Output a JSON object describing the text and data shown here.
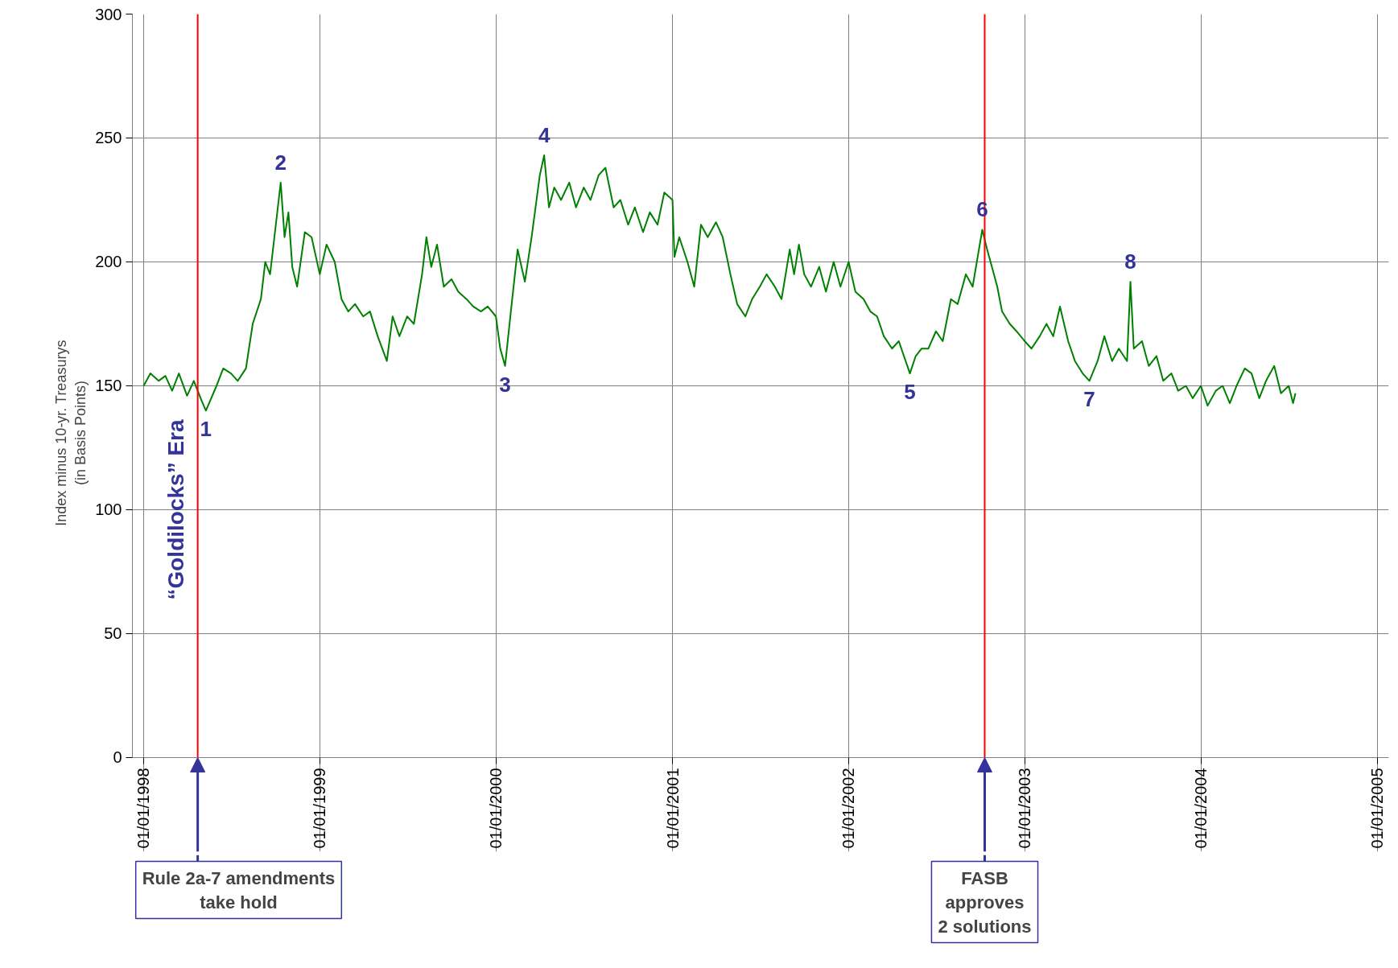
{
  "chart_data": {
    "type": "line",
    "ylabel": "Index minus 10-yr. Treasurys\n(in Basis Points)",
    "x": [
      "1998-01-01",
      "1998-01-15",
      "1998-02-01",
      "1998-02-15",
      "1998-03-01",
      "1998-03-15",
      "1998-04-01",
      "1998-04-15",
      "1998-05-01",
      "1998-05-10",
      "1998-06-01",
      "1998-06-15",
      "1998-07-01",
      "1998-07-15",
      "1998-08-01",
      "1998-08-15",
      "1998-09-01",
      "1998-09-10",
      "1998-09-20",
      "1998-10-12",
      "1998-10-20",
      "1998-10-28",
      "1998-11-05",
      "1998-11-15",
      "1998-12-01",
      "1998-12-15",
      "1999-01-01",
      "1999-01-15",
      "1999-02-01",
      "1999-02-15",
      "1999-03-01",
      "1999-03-15",
      "1999-04-01",
      "1999-04-15",
      "1999-05-01",
      "1999-05-20",
      "1999-06-01",
      "1999-06-15",
      "1999-07-01",
      "1999-07-15",
      "1999-08-01",
      "1999-08-10",
      "1999-08-20",
      "1999-09-01",
      "1999-09-15",
      "1999-10-01",
      "1999-10-15",
      "1999-11-01",
      "1999-11-15",
      "1999-12-01",
      "1999-12-15",
      "2000-01-01",
      "2000-01-10",
      "2000-01-20",
      "2000-02-01",
      "2000-02-15",
      "2000-03-01",
      "2000-03-15",
      "2000-04-01",
      "2000-04-10",
      "2000-04-20",
      "2000-05-01",
      "2000-05-15",
      "2000-06-01",
      "2000-06-15",
      "2000-07-01",
      "2000-07-15",
      "2000-08-01",
      "2000-08-15",
      "2000-09-01",
      "2000-09-15",
      "2000-10-01",
      "2000-10-15",
      "2000-11-01",
      "2000-11-15",
      "2000-12-01",
      "2000-12-15",
      "2001-01-01",
      "2001-01-05",
      "2001-01-15",
      "2001-02-01",
      "2001-02-15",
      "2001-03-01",
      "2001-03-15",
      "2001-04-01",
      "2001-04-15",
      "2001-05-01",
      "2001-05-15",
      "2001-06-01",
      "2001-06-15",
      "2001-07-01",
      "2001-07-15",
      "2001-08-01",
      "2001-08-15",
      "2001-09-01",
      "2001-09-10",
      "2001-09-20",
      "2001-10-01",
      "2001-10-15",
      "2001-11-01",
      "2001-11-15",
      "2001-12-01",
      "2001-12-15",
      "2002-01-01",
      "2002-01-15",
      "2002-02-01",
      "2002-02-15",
      "2002-03-01",
      "2002-03-15",
      "2002-04-01",
      "2002-04-15",
      "2002-05-08",
      "2002-05-20",
      "2002-06-01",
      "2002-06-15",
      "2002-07-01",
      "2002-07-15",
      "2002-08-01",
      "2002-08-15",
      "2002-09-01",
      "2002-09-15",
      "2002-10-05",
      "2002-10-15",
      "2002-10-25",
      "2002-11-05",
      "2002-11-15",
      "2002-12-01",
      "2002-12-15",
      "2003-01-01",
      "2003-01-15",
      "2003-02-01",
      "2003-02-15",
      "2003-03-01",
      "2003-03-15",
      "2003-04-01",
      "2003-04-15",
      "2003-05-01",
      "2003-05-15",
      "2003-06-01",
      "2003-06-15",
      "2003-07-01",
      "2003-07-15",
      "2003-08-01",
      "2003-08-08",
      "2003-08-15",
      "2003-09-01",
      "2003-09-15",
      "2003-10-01",
      "2003-10-15",
      "2003-11-01",
      "2003-11-15",
      "2003-12-01",
      "2003-12-15",
      "2004-01-01",
      "2004-01-15",
      "2004-02-01",
      "2004-02-15",
      "2004-03-01",
      "2004-03-15",
      "2004-04-01",
      "2004-04-15",
      "2004-05-01",
      "2004-05-15",
      "2004-06-01",
      "2004-06-15",
      "2004-07-01",
      "2004-07-10",
      "2004-07-15"
    ],
    "series": [
      {
        "color": "#008000",
        "values": [
          150,
          155,
          152,
          154,
          148,
          155,
          146,
          152,
          144,
          140,
          150,
          157,
          155,
          152,
          157,
          175,
          185,
          200,
          195,
          232,
          210,
          220,
          198,
          190,
          212,
          210,
          195,
          207,
          200,
          185,
          180,
          183,
          178,
          180,
          170,
          160,
          178,
          170,
          178,
          175,
          195,
          210,
          198,
          207,
          190,
          193,
          188,
          185,
          182,
          180,
          182,
          178,
          165,
          158,
          180,
          205,
          192,
          210,
          235,
          243,
          222,
          230,
          225,
          232,
          222,
          230,
          225,
          235,
          238,
          222,
          225,
          215,
          222,
          212,
          220,
          215,
          228,
          225,
          202,
          210,
          200,
          190,
          215,
          210,
          216,
          210,
          195,
          183,
          178,
          185,
          190,
          195,
          190,
          185,
          205,
          195,
          207,
          195,
          190,
          198,
          188,
          200,
          190,
          200,
          188,
          185,
          180,
          178,
          170,
          165,
          168,
          155,
          162,
          165,
          165,
          172,
          168,
          185,
          183,
          195,
          190,
          213,
          205,
          198,
          190,
          180,
          175,
          172,
          168,
          165,
          170,
          175,
          170,
          182,
          168,
          160,
          155,
          152,
          160,
          170,
          160,
          165,
          160,
          192,
          165,
          168,
          158,
          162,
          152,
          155,
          148,
          150,
          145,
          150,
          142,
          148,
          150,
          143,
          150,
          157,
          155,
          145,
          152,
          158,
          147,
          150,
          143,
          147
        ]
      }
    ],
    "xlim": [
      "1998-01-01",
      "2005-01-01"
    ],
    "xticks": [
      {
        "value": "1998-01-01",
        "label": "01/01/1998"
      },
      {
        "value": "1999-01-01",
        "label": "01/01/1999"
      },
      {
        "value": "2000-01-01",
        "label": "01/01/2000"
      },
      {
        "value": "2001-01-01",
        "label": "01/01/2001"
      },
      {
        "value": "2002-01-01",
        "label": "01/01/2002"
      },
      {
        "value": "2003-01-01",
        "label": "01/01/2003"
      },
      {
        "value": "2004-01-01",
        "label": "01/01/2004"
      },
      {
        "value": "2005-01-01",
        "label": "01/01/2005"
      }
    ],
    "ylim": [
      0,
      300
    ],
    "yticks": [
      0,
      50,
      100,
      150,
      200,
      250,
      300
    ],
    "grid": true,
    "marker": "none",
    "line_style": "solid",
    "ref_lines": [
      {
        "axis": "x",
        "value": "1998-04-23",
        "label": "Rule 2a-7 amendments\ntake hold",
        "color": "#ff0000"
      },
      {
        "axis": "x",
        "value": "2002-10-10",
        "label": "FASB\napproves\n2 solutions",
        "color": "#ff0000"
      }
    ],
    "annotations": [
      {
        "text": "1",
        "x": "1998-05-10",
        "y": 140
      },
      {
        "text": "2",
        "x": "1998-10-12",
        "y": 232
      },
      {
        "text": "3",
        "x": "2000-01-20",
        "y": 158
      },
      {
        "text": "4",
        "x": "2000-04-10",
        "y": 243
      },
      {
        "text": "5",
        "x": "2002-05-08",
        "y": 155
      },
      {
        "text": "6",
        "x": "2002-10-05",
        "y": 213
      },
      {
        "text": "7",
        "x": "2003-05-15",
        "y": 152
      },
      {
        "text": "8",
        "x": "2003-08-08",
        "y": 192
      },
      "“Goldilocks” Era"
    ]
  }
}
